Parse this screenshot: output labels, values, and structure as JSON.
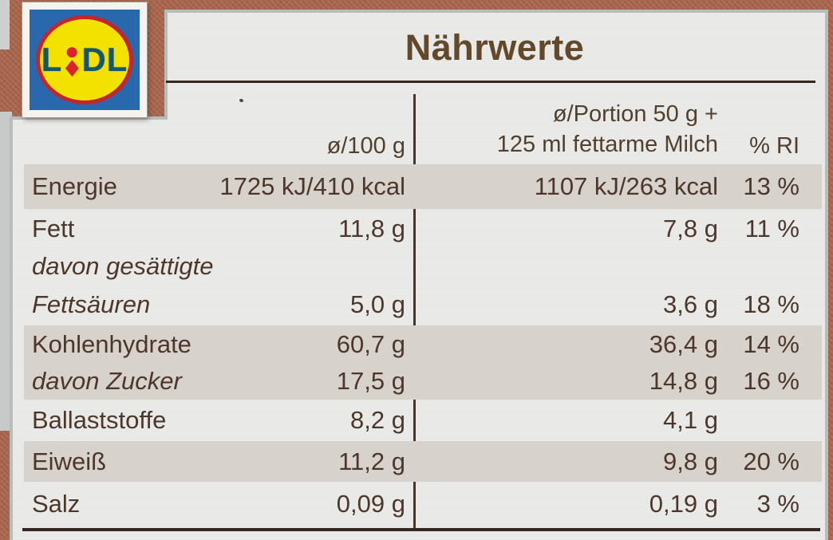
{
  "brand": {
    "name": "Lidl",
    "wordmark_left": "L",
    "wordmark_right": "DL"
  },
  "title": "Nährwerte",
  "header": {
    "per100": "ø/100 g",
    "portion_line1": "ø/Portion 50 g +",
    "portion_line2": "125 ml fettarme Milch",
    "ri": "% RI"
  },
  "rows": [
    {
      "label": "Energie",
      "per100": "1725 kJ/410 kcal",
      "portion": "1107 kJ/263 kcal",
      "ri": "13 %"
    },
    {
      "label": "Fett",
      "per100": "11,8 g",
      "portion": "7,8 g",
      "ri": "11 %"
    },
    {
      "label_line1": "davon gesättigte",
      "label_line2": "Fettsäuren",
      "per100": "5,0 g",
      "portion": "3,6 g",
      "ri": "18 %"
    },
    {
      "label": "Kohlenhydrate",
      "per100": "60,7 g",
      "portion": "36,4 g",
      "ri": "14 %"
    },
    {
      "label": "davon Zucker",
      "per100": "17,5 g",
      "portion": "14,8 g",
      "ri": "16 %"
    },
    {
      "label": "Ballaststoffe",
      "per100": "8,2 g",
      "portion": "4,1 g",
      "ri": ""
    },
    {
      "label": "Eiweiß",
      "per100": "11,2 g",
      "portion": "9,8 g",
      "ri": "20 %"
    },
    {
      "label": "Salz",
      "per100": "0,09 g",
      "portion": "0,19 g",
      "ri": "3 %"
    }
  ],
  "colors": {
    "packaging_brown": "#ae6f56",
    "label_background": "#eaebe9",
    "row_band": "#d8d2cd",
    "text_brown": "#4c372a",
    "title_brown": "#63492b",
    "rule_dark": "#35291f",
    "lidl_blue": "#2a68ae",
    "lidl_yellow": "#f3e100",
    "lidl_red": "#d8232a",
    "lidl_letter_blue": "#14566e"
  }
}
